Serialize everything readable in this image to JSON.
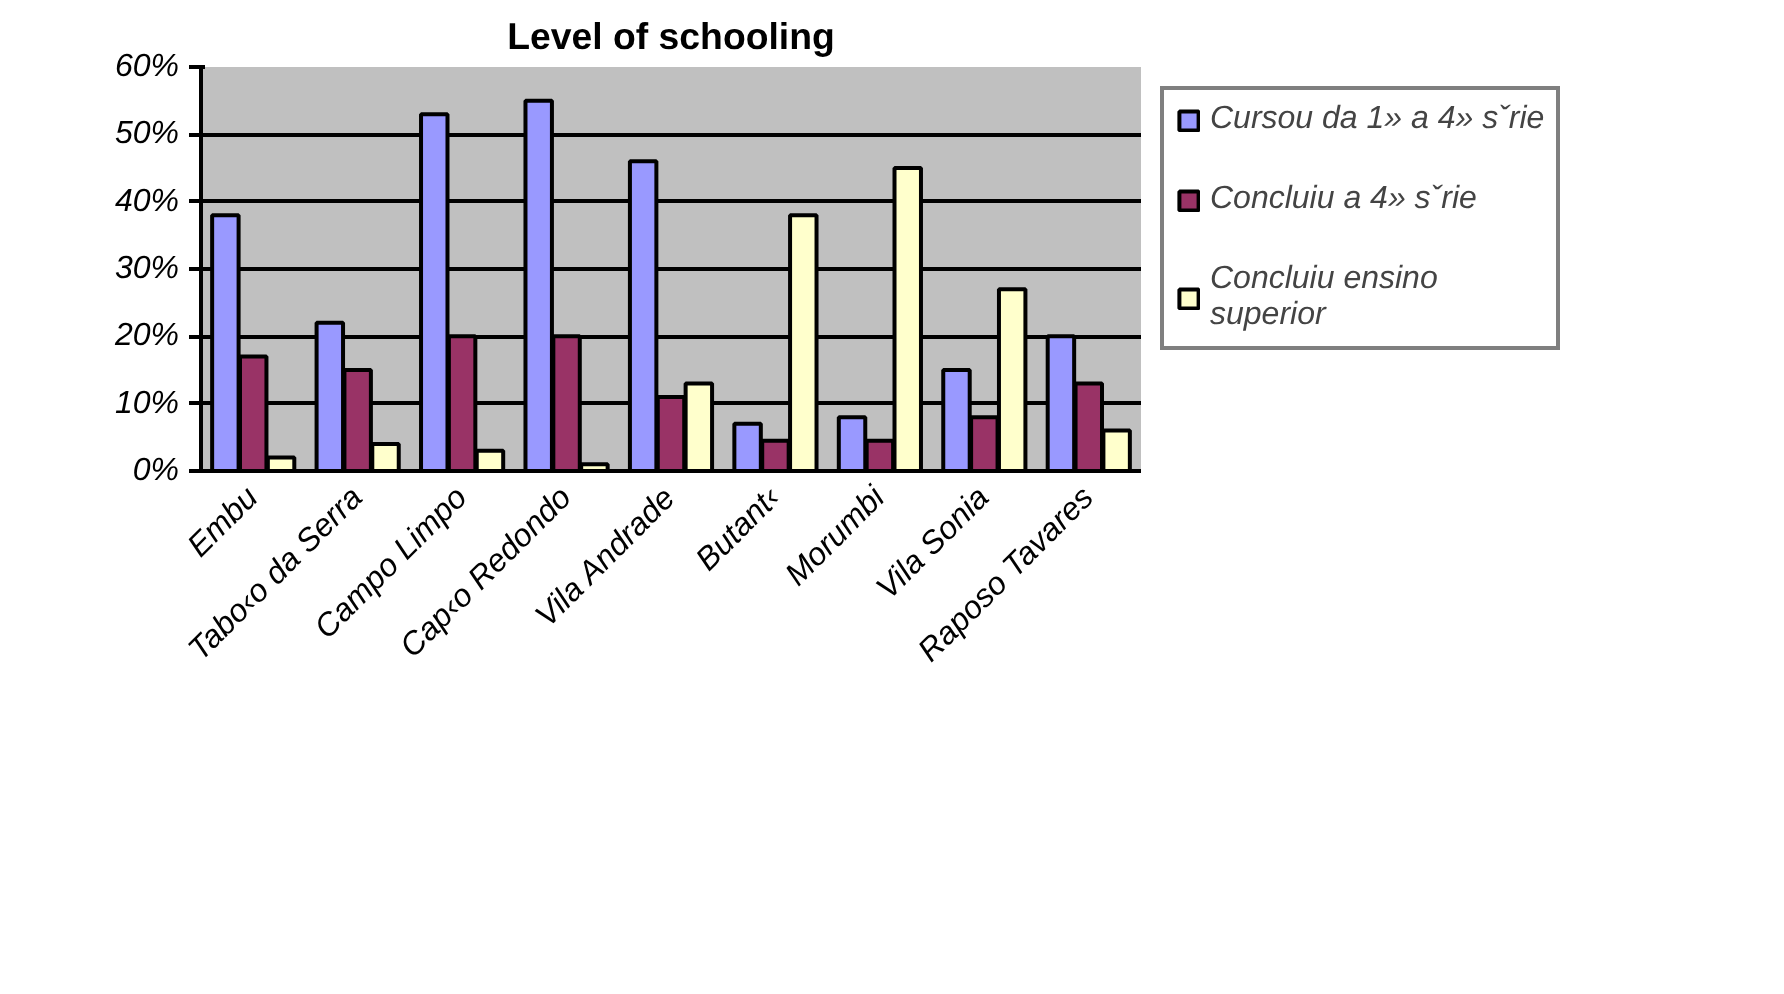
{
  "chart_data": {
    "type": "bar",
    "title": "Level of schooling",
    "categories": [
      "Embu",
      "Tabo‹o da Serra",
      "Campo Limpo",
      "Cap‹o Redondo",
      "Vila Andrade",
      "Butant‹",
      "Morumbi",
      "Vila Sonia",
      "Raposo Tavares"
    ],
    "series": [
      {
        "name": "Cursou da 1» a 4» sˇrie",
        "color": "#9999ff",
        "values": [
          38,
          22,
          53,
          55,
          46,
          7,
          8,
          15,
          20
        ]
      },
      {
        "name": "Concluiu a 4» sˇrie",
        "color": "#993366",
        "values": [
          17,
          15,
          20,
          20,
          11,
          4.5,
          4.5,
          8,
          13
        ]
      },
      {
        "name": "Concluiu ensino superior",
        "color": "#ffffcc",
        "values": [
          2,
          4,
          3,
          1,
          13,
          38,
          45,
          27,
          6
        ]
      }
    ],
    "ylim": [
      0,
      60
    ],
    "yticks": [
      {
        "value": 0,
        "label": "0%"
      },
      {
        "value": 10,
        "label": "10%"
      },
      {
        "value": 20,
        "label": "20%"
      },
      {
        "value": 30,
        "label": "30%"
      },
      {
        "value": 40,
        "label": "40%"
      },
      {
        "value": 50,
        "label": "50%"
      },
      {
        "value": 60,
        "label": "60%"
      }
    ],
    "grid": "y",
    "legend": "right"
  }
}
